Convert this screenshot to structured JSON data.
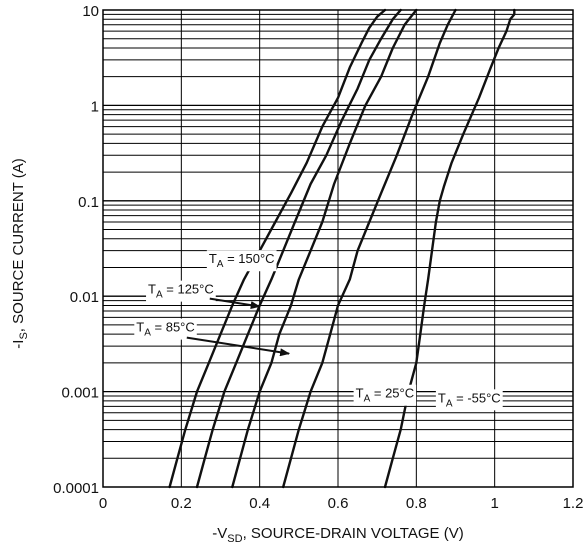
{
  "chart_data": {
    "type": "line",
    "xlabel": "-V",
    "xlabel_sub": "SD",
    "xlabel_rest": ", SOURCE-DRAIN VOLTAGE (V)",
    "ylabel": "-I",
    "ylabel_sub": "S",
    "ylabel_rest": ", SOURCE CURRENT (A)",
    "xlim": [
      0,
      1.2
    ],
    "ylim": [
      0.0001,
      10
    ],
    "y_scale": "log",
    "grid": true,
    "x_ticks": [
      "0",
      "0.2",
      "0.4",
      "0.6",
      "0.8",
      "1",
      "1.2"
    ],
    "y_ticks": [
      "0.0001",
      "0.001",
      "0.01",
      "0.1",
      "1",
      "10"
    ],
    "series": [
      {
        "name": "150°C",
        "x": [
          0.17,
          0.19,
          0.21,
          0.24,
          0.27,
          0.3,
          0.33,
          0.36,
          0.4,
          0.44,
          0.48,
          0.52,
          0.56,
          0.6,
          0.63,
          0.66,
          0.68,
          0.7,
          0.72
        ],
        "y": [
          0.0001,
          0.0002,
          0.0004,
          0.001,
          0.002,
          0.004,
          0.008,
          0.015,
          0.03,
          0.06,
          0.12,
          0.25,
          0.6,
          1.2,
          2.5,
          4.5,
          6.5,
          8.5,
          10
        ]
      },
      {
        "name": "125°C",
        "x": [
          0.24,
          0.26,
          0.28,
          0.31,
          0.34,
          0.37,
          0.4,
          0.43,
          0.46,
          0.49,
          0.53,
          0.57,
          0.61,
          0.65,
          0.68,
          0.71,
          0.74,
          0.76
        ],
        "y": [
          0.0001,
          0.0002,
          0.0004,
          0.001,
          0.002,
          0.004,
          0.008,
          0.015,
          0.03,
          0.06,
          0.15,
          0.3,
          0.7,
          1.5,
          3,
          5,
          8,
          10
        ]
      },
      {
        "name": "85°C",
        "x": [
          0.33,
          0.35,
          0.37,
          0.4,
          0.43,
          0.45,
          0.48,
          0.5,
          0.53,
          0.56,
          0.59,
          0.63,
          0.67,
          0.71,
          0.74,
          0.77,
          0.8
        ],
        "y": [
          0.0001,
          0.0002,
          0.0004,
          0.001,
          0.002,
          0.004,
          0.008,
          0.015,
          0.03,
          0.06,
          0.15,
          0.4,
          1,
          2,
          4,
          7,
          10
        ]
      },
      {
        "name": "25°C",
        "x": [
          0.46,
          0.48,
          0.5,
          0.53,
          0.56,
          0.58,
          0.6,
          0.63,
          0.65,
          0.68,
          0.71,
          0.75,
          0.79,
          0.83,
          0.86,
          0.88,
          0.9
        ],
        "y": [
          0.0001,
          0.0002,
          0.0004,
          0.001,
          0.002,
          0.004,
          0.008,
          0.015,
          0.03,
          0.06,
          0.12,
          0.3,
          0.8,
          2,
          4.5,
          7,
          10
        ]
      },
      {
        "name": "-55°C",
        "x": [
          0.72,
          0.74,
          0.76,
          0.78,
          0.8,
          0.81,
          0.82,
          0.83,
          0.84,
          0.85,
          0.86,
          0.87,
          0.89,
          0.92,
          0.96,
          0.99,
          1.01,
          1.03,
          1.04,
          1.05,
          1.05
        ],
        "y": [
          0.0001,
          0.0002,
          0.0004,
          0.001,
          0.002,
          0.004,
          0.008,
          0.015,
          0.03,
          0.06,
          0.1,
          0.14,
          0.25,
          0.5,
          1.2,
          2.5,
          4,
          6,
          8,
          9,
          10
        ]
      }
    ],
    "annotations": [
      {
        "main": "T",
        "sub": "A",
        "text": " = 150°C",
        "series": "150°C"
      },
      {
        "main": "T",
        "sub": "A",
        "text": " = 125°C",
        "series": "125°C"
      },
      {
        "main": "T",
        "sub": "A",
        "text": " = 85°C",
        "series": "85°C"
      },
      {
        "main": "T",
        "sub": "A",
        "text": " = 25°C",
        "series": "25°C"
      },
      {
        "main": "T",
        "sub": "A",
        "text": " = -55°C",
        "series": "-55°C"
      }
    ]
  }
}
